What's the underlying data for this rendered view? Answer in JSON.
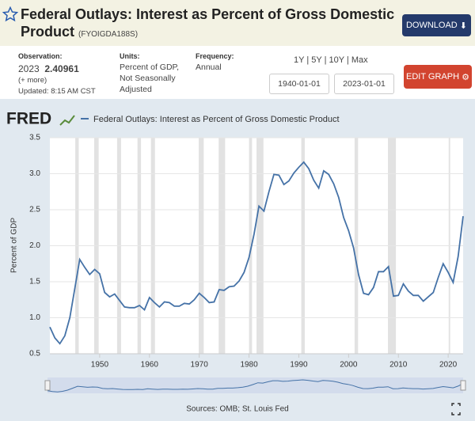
{
  "header": {
    "title": "Federal Outlays: Interest as Percent of Gross Domestic Product",
    "series_id": "(FYOIGDA188S)",
    "download": "DOWNLOAD"
  },
  "info": {
    "observation_label": "Observation:",
    "observation_date": "2023",
    "observation_value": "2.40961",
    "more": "(+ more)",
    "updated": "Updated: 8:15 AM CST",
    "units_label": "Units:",
    "units": "Percent of GDP, Not Seasonally Adjusted",
    "frequency_label": "Frequency:",
    "frequency": "Annual",
    "range_buttons": [
      "1Y",
      "5Y",
      "10Y",
      "Max"
    ],
    "start_date": "1940-01-01",
    "end_date": "2023-01-01",
    "edit": "EDIT GRAPH"
  },
  "chart_data": {
    "type": "line",
    "logo": "FRED",
    "y_label": "Percent of GDP",
    "source": "Sources: OMB; St. Louis Fed",
    "x": [
      1940,
      1941,
      1942,
      1943,
      1944,
      1945,
      1946,
      1947,
      1948,
      1949,
      1950,
      1951,
      1952,
      1953,
      1954,
      1955,
      1956,
      1957,
      1958,
      1959,
      1960,
      1961,
      1962,
      1963,
      1964,
      1965,
      1966,
      1967,
      1968,
      1969,
      1970,
      1971,
      1972,
      1973,
      1974,
      1975,
      1976,
      1977,
      1978,
      1979,
      1980,
      1981,
      1982,
      1983,
      1984,
      1985,
      1986,
      1987,
      1988,
      1989,
      1990,
      1991,
      1992,
      1993,
      1994,
      1995,
      1996,
      1997,
      1998,
      1999,
      2000,
      2001,
      2002,
      2003,
      2004,
      2005,
      2006,
      2007,
      2008,
      2009,
      2010,
      2011,
      2012,
      2013,
      2014,
      2015,
      2016,
      2017,
      2018,
      2019,
      2020,
      2021,
      2022,
      2023
    ],
    "series": [
      {
        "name": "Federal Outlays: Interest as Percent of Gross Domestic Product",
        "color": "#4572a7",
        "values": [
          0.87,
          0.72,
          0.64,
          0.75,
          1.0,
          1.4,
          1.81,
          1.7,
          1.6,
          1.67,
          1.61,
          1.35,
          1.29,
          1.33,
          1.24,
          1.15,
          1.14,
          1.14,
          1.17,
          1.11,
          1.28,
          1.21,
          1.15,
          1.22,
          1.21,
          1.16,
          1.16,
          1.2,
          1.19,
          1.25,
          1.34,
          1.28,
          1.21,
          1.22,
          1.39,
          1.38,
          1.43,
          1.44,
          1.51,
          1.63,
          1.84,
          2.16,
          2.55,
          2.48,
          2.75,
          2.99,
          2.98,
          2.85,
          2.9,
          3.01,
          3.09,
          3.16,
          3.07,
          2.91,
          2.8,
          3.04,
          2.99,
          2.86,
          2.67,
          2.39,
          2.21,
          1.97,
          1.6,
          1.34,
          1.32,
          1.42,
          1.64,
          1.64,
          1.71,
          1.3,
          1.31,
          1.47,
          1.37,
          1.31,
          1.31,
          1.23,
          1.29,
          1.35,
          1.56,
          1.75,
          1.63,
          1.49,
          1.85,
          2.40961
        ]
      }
    ],
    "shading": [
      [
        1945.1,
        1945.8
      ],
      [
        1948.9,
        1949.8
      ],
      [
        1953.5,
        1954.3
      ],
      [
        1957.6,
        1958.3
      ],
      [
        1960.3,
        1961.1
      ],
      [
        1969.9,
        1970.9
      ],
      [
        1973.9,
        1975.2
      ],
      [
        1980,
        1980.6
      ],
      [
        1981.5,
        1982.9
      ],
      [
        1990.5,
        1991.2
      ],
      [
        2001.2,
        2001.9
      ],
      [
        2007.9,
        2009.5
      ],
      [
        2020.1,
        2020.4
      ]
    ],
    "xlim": [
      1940,
      2023
    ],
    "xticks": [
      1950,
      1960,
      1970,
      1980,
      1990,
      2000,
      2010,
      2020
    ],
    "ylim": [
      0.5,
      3.5
    ],
    "yticks": [
      0.5,
      {
        "value": 1,
        "label": "1.0"
      },
      1.5,
      {
        "value": 2,
        "label": "2.0"
      },
      2.5,
      {
        "value": 3,
        "label": "3.0"
      },
      3.5
    ],
    "grid": true
  }
}
